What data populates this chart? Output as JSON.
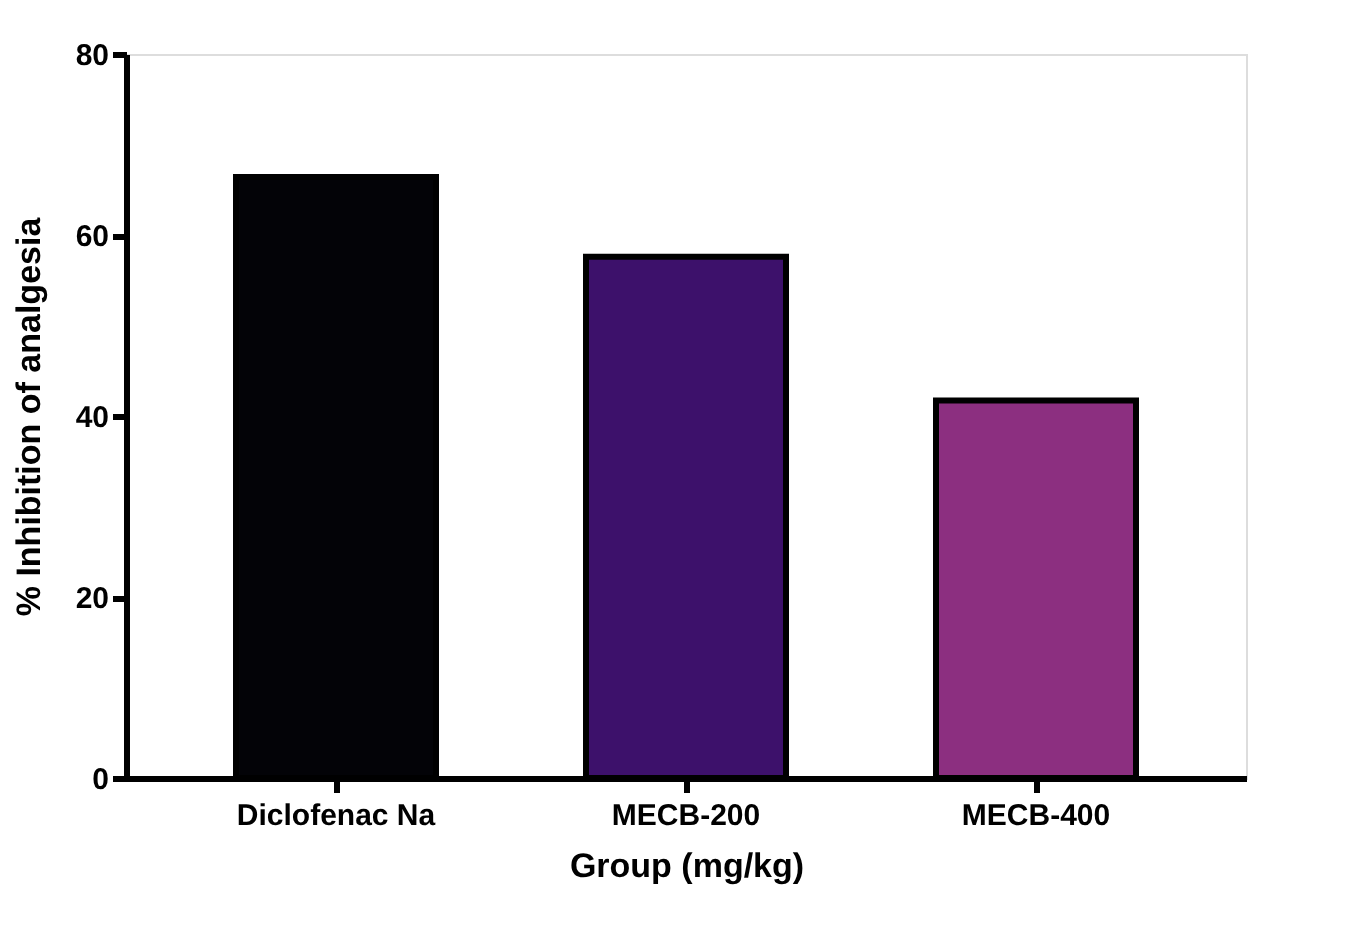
{
  "chart_data": {
    "type": "bar",
    "xlabel": "Group (mg/kg)",
    "ylabel": "% Inhibition of analgesia",
    "categories": [
      "Diclofenac Na",
      "MECB-200",
      "MECB-400"
    ],
    "values": [
      66.4,
      57.6,
      41.7
    ],
    "colors": [
      "#030307",
      "#3d116b",
      "#8c2f80"
    ],
    "ylim": [
      0,
      80
    ],
    "yticks": [
      0,
      20,
      40,
      60,
      80
    ],
    "grid": false
  }
}
